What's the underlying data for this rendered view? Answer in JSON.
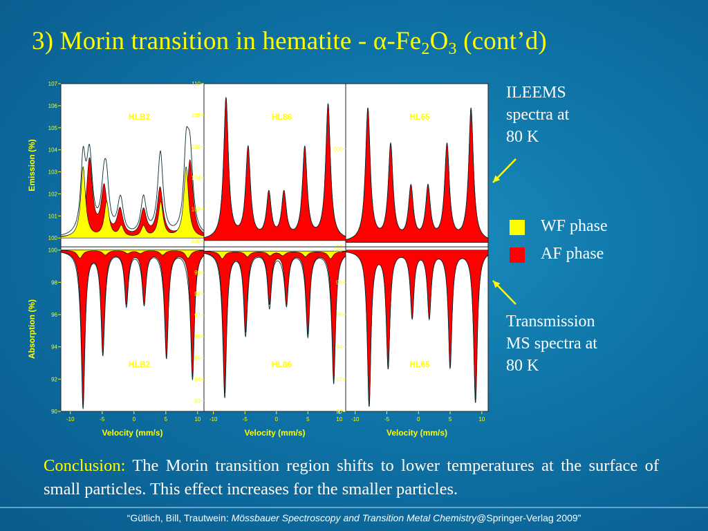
{
  "title": {
    "prefix": "3) Morin transition in hematite - ",
    "alpha": "α",
    "formula_a": "-Fe",
    "sub1": "2",
    "formula_b": "O",
    "sub2": "3",
    "suffix": " (cont’d)"
  },
  "side_text": {
    "ileems": "ILEEMS\nspectra  at\n80 K",
    "transmission": "Transmission\nMS spectra at\n80 K"
  },
  "legend": [
    {
      "label": "WF phase",
      "color": "#ffff00"
    },
    {
      "label": "AF phase",
      "color": "#ff0000"
    }
  ],
  "conclusion": {
    "lead": "Conclusion:",
    "text": " The Morin transition region shifts to lower temperatures at the surface of small particles. This effect increases for the smaller particles."
  },
  "footer": {
    "prefix": "“Gütlich, Bill, Trautwein: ",
    "book": "Mössbauer Spectroscopy and Transition Metal Chemistry",
    "suffix": "@Springer-Verlag 2009”"
  },
  "colors": {
    "wf": "#ffff00",
    "af": "#ff0000",
    "axis": "#ffff00",
    "panel_bg": "#ffffff"
  },
  "chart_data": [
    {
      "type": "line",
      "mode": "emission",
      "sample_label": "HLB2",
      "ylabel": "Emission (%)",
      "xlim": [
        -11.5,
        11
      ],
      "ylim": [
        99.6,
        107
      ],
      "yticks": [
        100,
        101,
        102,
        103,
        104,
        105,
        106,
        107
      ],
      "ytick_labels": [
        "100",
        "101",
        "102",
        "103",
        "104",
        "105",
        "106",
        "107"
      ],
      "baseline": 100,
      "series": [
        {
          "name": "AF phase",
          "fill": "#ff0000",
          "width": 0.55,
          "peaks": [
            {
              "x": -7.0,
              "y": 3.5
            },
            {
              "x": -4.7,
              "y": 2.2
            },
            {
              "x": -2.2,
              "y": 1.2
            },
            {
              "x": 1.5,
              "y": 1.2
            },
            {
              "x": 4.1,
              "y": 2.2
            },
            {
              "x": 8.8,
              "y": 3.5
            }
          ]
        },
        {
          "name": "WF phase",
          "fill": "#ffff00",
          "width": 0.45,
          "peaks": [
            {
              "x": -8.0,
              "y": 3.2
            },
            {
              "x": -4.3,
              "y": 1.6
            },
            {
              "x": -2.0,
              "y": 0.5
            },
            {
              "x": 1.5,
              "y": 0.5
            },
            {
              "x": 4.2,
              "y": 1.6
            },
            {
              "x": 8.2,
              "y": 3.2
            }
          ]
        }
      ]
    },
    {
      "type": "line",
      "mode": "emission",
      "sample_label": "HL86",
      "ylabel": "",
      "xlim": [
        -11.5,
        11
      ],
      "ylim": [
        99.6,
        110
      ],
      "yticks": [
        100,
        102,
        104,
        106,
        108,
        110
      ],
      "ytick_labels": [
        "100",
        "102",
        "104",
        "106",
        "108",
        "110"
      ],
      "baseline": 100,
      "series": [
        {
          "name": "AF phase",
          "fill": "#ff0000",
          "width": 0.45,
          "peaks": [
            {
              "x": -8.0,
              "y": 9.0
            },
            {
              "x": -4.5,
              "y": 5.8
            },
            {
              "x": -1.2,
              "y": 2.9
            },
            {
              "x": 1.2,
              "y": 2.9
            },
            {
              "x": 4.5,
              "y": 5.8
            },
            {
              "x": 8.2,
              "y": 8.6
            }
          ]
        }
      ]
    },
    {
      "type": "line",
      "mode": "emission",
      "sample_label": "HL65",
      "ylabel": "",
      "xlim": [
        -11.5,
        11
      ],
      "ylim": [
        99,
        114
      ],
      "yticks": [
        108
      ],
      "ytick_labels": [
        "108"
      ],
      "extra_labels": [
        {
          "text": "99",
          "value": 99
        }
      ],
      "baseline": 99.4,
      "series": [
        {
          "name": "AF phase",
          "fill": "#ff0000",
          "width": 0.45,
          "peaks": [
            {
              "x": -8.0,
              "y": 12.2
            },
            {
              "x": -4.4,
              "y": 8.8
            },
            {
              "x": -1.2,
              "y": 4.9
            },
            {
              "x": 1.5,
              "y": 4.9
            },
            {
              "x": 4.5,
              "y": 8.8
            },
            {
              "x": 8.3,
              "y": 12.2
            }
          ]
        }
      ]
    },
    {
      "type": "line",
      "mode": "absorption",
      "sample_label": "HLB2",
      "ylabel": "Absorption (%)",
      "xlabel": "Velocity (mm/s)",
      "xlim": [
        -11.5,
        11
      ],
      "xticks": [
        -10,
        -5,
        0,
        5,
        10
      ],
      "xtick_labels": [
        "-10",
        "-5",
        "0",
        "5",
        "10"
      ],
      "ylim": [
        90,
        100.2
      ],
      "yticks": [
        90,
        92,
        94,
        96,
        98,
        100
      ],
      "ytick_labels": [
        "90",
        "92",
        "94",
        "96",
        "98",
        "100"
      ],
      "baseline": 100,
      "series": [
        {
          "name": "AF phase",
          "fill": "#ff0000",
          "width": 0.35,
          "peaks": [
            {
              "x": -8.0,
              "y": 9.5
            },
            {
              "x": -4.9,
              "y": 6.2
            },
            {
              "x": -1.2,
              "y": 3.2
            },
            {
              "x": 1.6,
              "y": 3.2
            },
            {
              "x": 5.1,
              "y": 6.5
            },
            {
              "x": 9.2,
              "y": 7.8
            }
          ]
        },
        {
          "name": "WF phase",
          "fill": "#ffff00",
          "width": 0.5,
          "peaks": [
            {
              "x": -8.5,
              "y": 0.5
            },
            {
              "x": -4.5,
              "y": 0.3
            },
            {
              "x": -1.0,
              "y": 0.2
            },
            {
              "x": 1.0,
              "y": 0.2
            },
            {
              "x": 4.5,
              "y": 0.3
            },
            {
              "x": 8.5,
              "y": 0.5
            }
          ]
        }
      ]
    },
    {
      "type": "line",
      "mode": "absorption",
      "sample_label": "HL86",
      "ylabel": "",
      "xlabel": "Velocity (mm/s)",
      "xlim": [
        -11.5,
        11
      ],
      "xticks": [
        -10,
        -5,
        0,
        5,
        10
      ],
      "xtick_labels": [
        "-10",
        "-5",
        "0",
        "5",
        "10"
      ],
      "ylim": [
        92.5,
        100.2
      ],
      "yticks": [
        93,
        94,
        95,
        96,
        97,
        98,
        99
      ],
      "ytick_labels": [
        "93",
        "94",
        "95",
        "96",
        "97",
        "98",
        "99"
      ],
      "baseline": 100,
      "series": [
        {
          "name": "AF phase",
          "fill": "#ff0000",
          "width": 0.35,
          "peaks": [
            {
              "x": -8.2,
              "y": 6.6
            },
            {
              "x": -4.9,
              "y": 3.7
            },
            {
              "x": -1.1,
              "y": 2.4
            },
            {
              "x": 1.6,
              "y": 2.4
            },
            {
              "x": 5.0,
              "y": 3.8
            },
            {
              "x": 9.1,
              "y": 6.0
            }
          ]
        },
        {
          "name": "WF phase",
          "fill": "#ffff00",
          "width": 0.5,
          "peaks": [
            {
              "x": -8.6,
              "y": 0.35
            },
            {
              "x": -4.6,
              "y": 0.25
            },
            {
              "x": -1.0,
              "y": 0.2
            },
            {
              "x": 1.0,
              "y": 0.2
            },
            {
              "x": 4.6,
              "y": 0.25
            },
            {
              "x": 8.6,
              "y": 0.35
            }
          ]
        }
      ]
    },
    {
      "type": "line",
      "mode": "absorption",
      "sample_label": "HL65",
      "ylabel": "",
      "xlabel": "Velocity (mm/s)",
      "xlim": [
        -11.5,
        11
      ],
      "xticks": [
        -10,
        -5,
        0,
        5,
        10
      ],
      "xtick_labels": [
        "-10",
        "-5",
        "0",
        "5",
        "10"
      ],
      "ylim": [
        90,
        100.2
      ],
      "yticks": [
        90,
        92,
        94,
        96,
        98,
        100
      ],
      "ytick_labels": [
        "90",
        "92",
        "94",
        "96",
        "98",
        "100"
      ],
      "baseline": 100,
      "series": [
        {
          "name": "AF phase",
          "fill": "#ff0000",
          "width": 0.35,
          "peaks": [
            {
              "x": -7.8,
              "y": 9.6
            },
            {
              "x": -4.8,
              "y": 7.2
            },
            {
              "x": -1.0,
              "y": 4.1
            },
            {
              "x": 1.7,
              "y": 4.1
            },
            {
              "x": 5.0,
              "y": 7.2
            },
            {
              "x": 9.0,
              "y": 9.4
            }
          ]
        }
      ]
    }
  ]
}
